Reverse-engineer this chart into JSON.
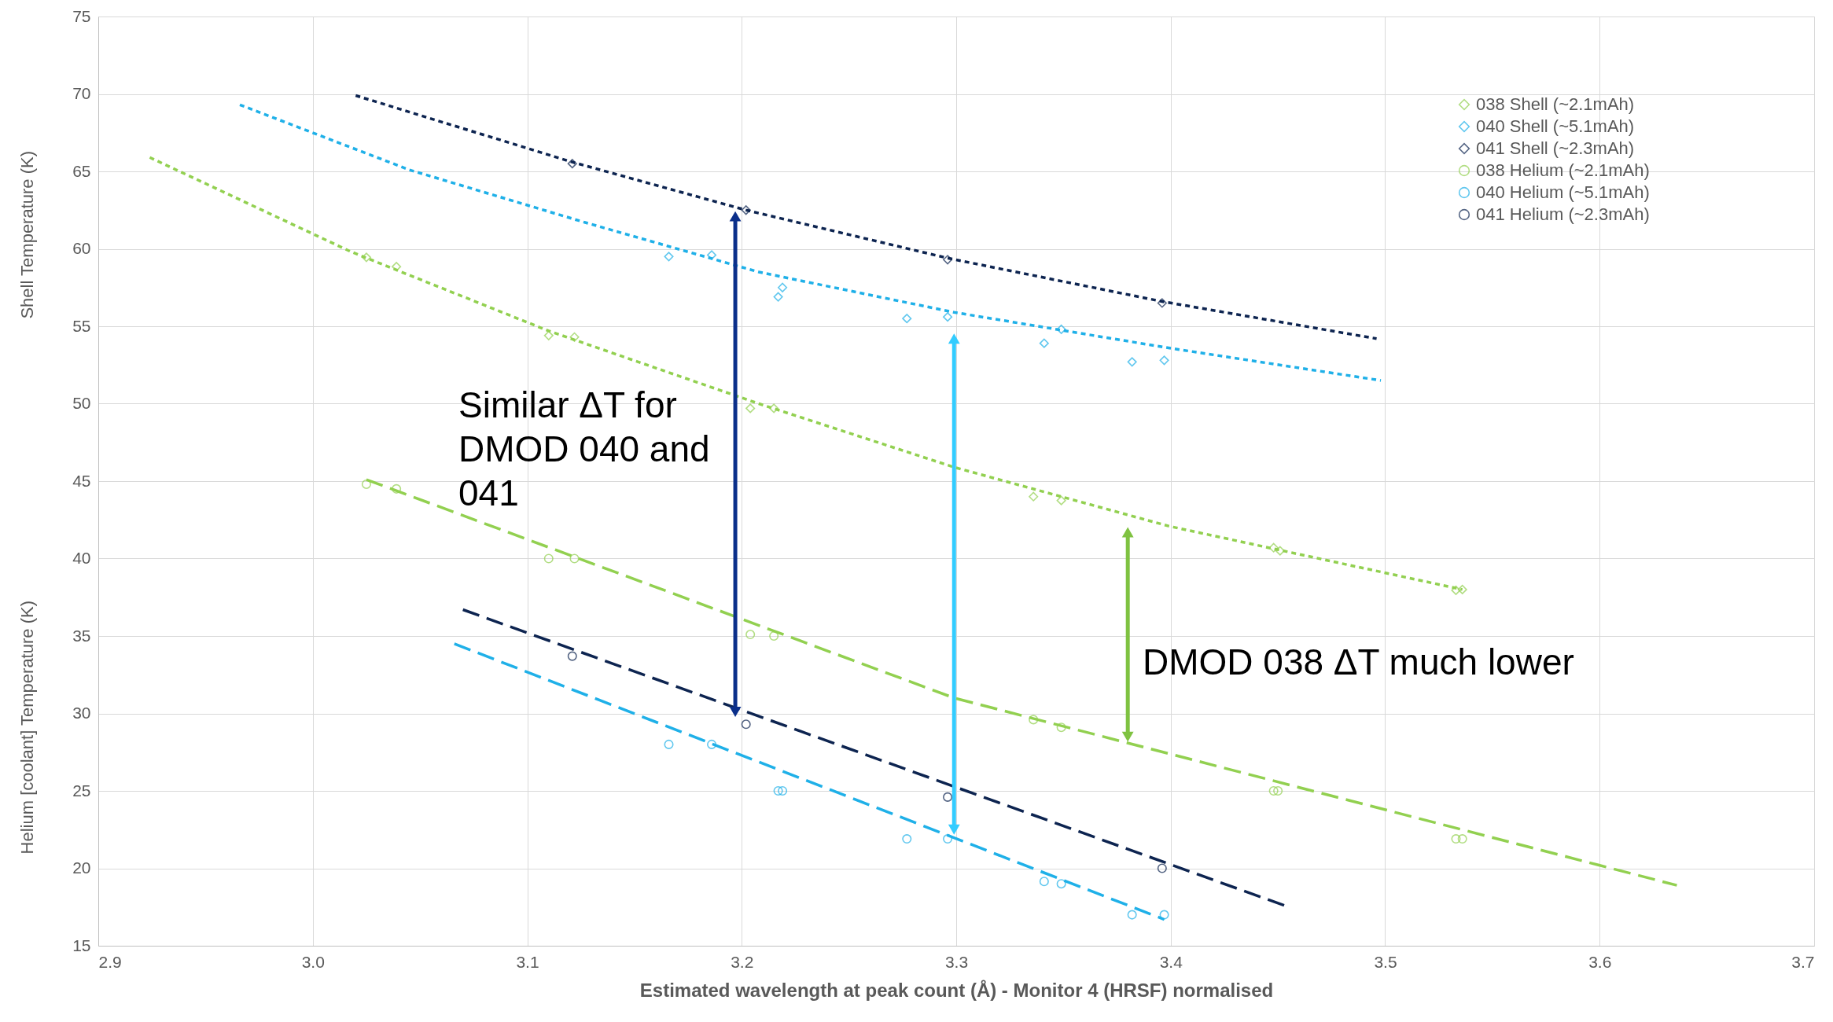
{
  "chart_data": {
    "type": "scatter",
    "xlabel": "Estimated wavelength at peak count (Å) - Monitor 4 (HRSF) normalised",
    "ylabel": "Shell Temperature (K)",
    "xlim": [
      2.9,
      3.7
    ],
    "ylim": [
      15,
      75
    ],
    "xticks": [
      2.9,
      {
        "value": 3,
        "label": "3.0"
      },
      3.1,
      3.2,
      3.3,
      3.4,
      3.5,
      3.6,
      3.7
    ],
    "yticks": [
      15,
      20,
      25,
      30,
      35,
      40,
      45,
      50,
      55,
      60,
      65,
      70,
      75
    ],
    "grid": true,
    "legend": "top right",
    "annotations": [
      "Helium [coolant] Temperature (K)",
      "Similar ΔT for DMOD 040 and 041",
      "DMOD 038 ΔT much lower"
    ],
    "series": [
      {
        "name": "038 Shell (~2.1mAh)",
        "color": "#92d050",
        "marker": "diamond",
        "x": [
          3.025,
          3.039,
          3.11,
          3.122,
          3.204,
          3.215,
          3.336,
          3.349,
          3.448,
          3.451,
          3.533,
          3.536
        ],
        "values": [
          59.45,
          58.85,
          54.4,
          54.3,
          49.7,
          49.7,
          44.0,
          43.75,
          40.7,
          40.5,
          37.95,
          38.0
        ]
      },
      {
        "name": "040 Shell (~5.1mAh)",
        "color": "#1fb0e8",
        "marker": "diamond",
        "x": [
          3.166,
          3.186,
          3.217,
          3.219,
          3.277,
          3.296,
          3.341,
          3.349,
          3.382,
          3.397
        ],
        "values": [
          59.5,
          59.6,
          56.9,
          57.5,
          55.5,
          55.6,
          53.9,
          54.8,
          52.7,
          52.8
        ]
      },
      {
        "name": "041 Shell (~2.3mAh)",
        "color": "#0d2450",
        "marker": "diamond",
        "x": [
          3.121,
          3.202,
          3.296,
          3.396
        ],
        "values": [
          65.5,
          62.5,
          59.3,
          56.5
        ]
      },
      {
        "name": "038 Helium (~2.1mAh)",
        "color": "#92d050",
        "marker": "circle",
        "x": [
          3.025,
          3.039,
          3.11,
          3.122,
          3.204,
          3.215,
          3.336,
          3.349,
          3.448,
          3.45,
          3.533,
          3.536
        ],
        "values": [
          44.8,
          44.5,
          40.0,
          40.0,
          35.1,
          35.0,
          29.6,
          29.1,
          25.0,
          25.0,
          21.9,
          21.9
        ]
      },
      {
        "name": "040 Helium (~5.1mAh)",
        "color": "#1fb0e8",
        "marker": "circle",
        "x": [
          3.166,
          3.186,
          3.217,
          3.219,
          3.277,
          3.296,
          3.341,
          3.349,
          3.382,
          3.397
        ],
        "values": [
          28.0,
          28.0,
          25.0,
          25.0,
          21.9,
          21.9,
          19.15,
          19.0,
          17.0,
          17.0
        ]
      },
      {
        "name": "041 Helium (~2.3mAh)",
        "color": "#0d2450",
        "marker": "circle",
        "x": [
          3.121,
          3.202,
          3.296,
          3.396
        ],
        "values": [
          33.7,
          29.3,
          24.6,
          20.0
        ]
      },
      {
        "type": "line",
        "color": "#92d050",
        "line_style": "dotted",
        "x": [
          2.924,
          3.018,
          3.11,
          3.208,
          3.299,
          3.399,
          3.536
        ],
        "values": [
          65.9,
          59.8,
          54.7,
          50.0,
          45.9,
          42.1,
          38.0
        ]
      },
      {
        "type": "line",
        "color": "#1fb0e8",
        "line_style": "dotted",
        "x": [
          2.966,
          3.045,
          3.127,
          3.208,
          3.299,
          3.399,
          3.498
        ],
        "values": [
          69.3,
          65.1,
          61.7,
          58.5,
          55.9,
          53.6,
          51.5
        ]
      },
      {
        "type": "line",
        "color": "#0d2450",
        "line_style": "dotted",
        "x": [
          3.02,
          3.121,
          3.202,
          3.296,
          3.396,
          3.496
        ],
        "values": [
          69.9,
          65.6,
          62.5,
          59.4,
          56.6,
          54.2
        ]
      },
      {
        "type": "line",
        "color": "#92d050",
        "line_style": "dashed",
        "x": [
          3.025,
          3.299,
          3.636
        ],
        "values": [
          45.1,
          31.0,
          18.9
        ]
      },
      {
        "type": "line",
        "color": "#1fb0e8",
        "line_style": "dashed",
        "x": [
          3.066,
          3.397
        ],
        "values": [
          34.5,
          16.7
        ]
      },
      {
        "type": "line",
        "color": "#0d2450",
        "line_style": "dashed",
        "x": [
          3.07,
          3.453
        ],
        "values": [
          36.7,
          17.6
        ]
      },
      {
        "type": "line",
        "color": "#0b2f8a",
        "line_style": "solid",
        "marker": "triangle",
        "x": [
          3.197,
          3.197
        ],
        "values": [
          62.1,
          30.1
        ]
      },
      {
        "type": "line",
        "color": "#33ccff",
        "line_style": "solid",
        "marker": "triangle",
        "x": [
          3.299,
          3.299
        ],
        "values": [
          54.2,
          22.5
        ]
      },
      {
        "type": "line",
        "color": "#7fc241",
        "line_style": "solid",
        "marker": "triangle",
        "x": [
          3.38,
          3.38
        ],
        "values": [
          41.7,
          28.5
        ]
      }
    ]
  }
}
